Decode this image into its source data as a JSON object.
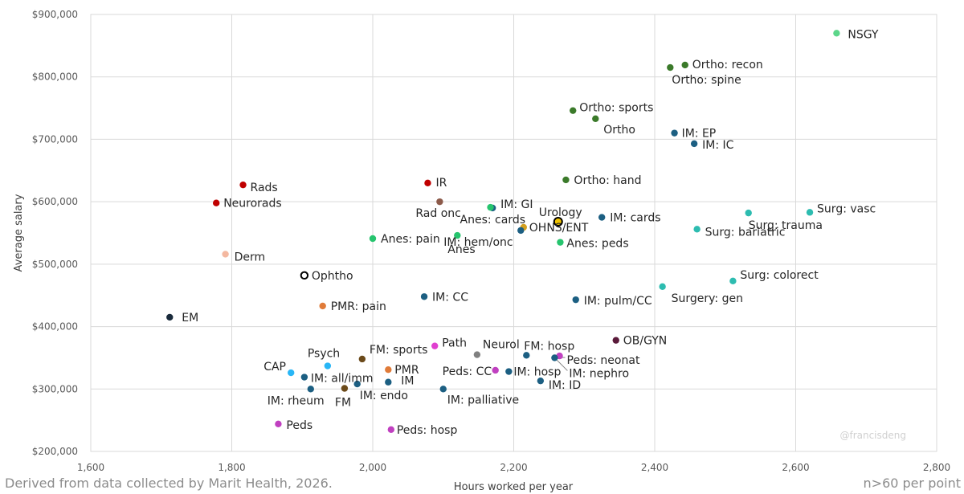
{
  "chart_data": {
    "type": "scatter",
    "title": "",
    "xlabel": "Hours worked per year",
    "ylabel": "Average salary",
    "xlim": [
      1600,
      2800
    ],
    "ylim": [
      200000,
      900000
    ],
    "x_ticks": [
      1600,
      1800,
      2000,
      2200,
      2400,
      2600,
      2800
    ],
    "y_ticks": [
      200000,
      300000,
      400000,
      500000,
      600000,
      700000,
      800000,
      900000
    ],
    "x_tick_labels": [
      "1,600",
      "1,800",
      "2,000",
      "2,200",
      "2,400",
      "2,600",
      "2,800"
    ],
    "y_tick_labels": [
      "$200,000",
      "$300,000",
      "$400,000",
      "$500,000",
      "$600,000",
      "$700,000",
      "$800,000",
      "$900,000"
    ],
    "grid": true,
    "points": [
      {
        "label": "NSGY",
        "x": 2658,
        "y": 870000,
        "color": "#5cd68a"
      },
      {
        "label": "Ortho: recon",
        "x": 2443,
        "y": 819000,
        "color": "#3b7a2a"
      },
      {
        "label": "Ortho: spine",
        "x": 2422,
        "y": 815000,
        "color": "#3b7a2a"
      },
      {
        "label": "Ortho: sports",
        "x": 2284,
        "y": 746000,
        "color": "#3b7a2a"
      },
      {
        "label": "Ortho",
        "x": 2316,
        "y": 733000,
        "color": "#3b7a2a"
      },
      {
        "label": "IM: EP",
        "x": 2428,
        "y": 710000,
        "color": "#1c5f82"
      },
      {
        "label": "IM: IC",
        "x": 2456,
        "y": 693000,
        "color": "#1c5f82"
      },
      {
        "label": "Ortho: hand",
        "x": 2274,
        "y": 635000,
        "color": "#3b7a2a"
      },
      {
        "label": "Rads",
        "x": 1816,
        "y": 627000,
        "color": "#c00000"
      },
      {
        "label": "IR",
        "x": 2078,
        "y": 630000,
        "color": "#c00000"
      },
      {
        "label": "Neurorads",
        "x": 1778,
        "y": 598000,
        "color": "#c00000"
      },
      {
        "label": "Rad onc",
        "x": 2095,
        "y": 600000,
        "color": "#8c5a4a"
      },
      {
        "label": "IM: GI",
        "x": 2170,
        "y": 590000,
        "color": "#1c5f82"
      },
      {
        "label": "Anes: cards",
        "x": 2167,
        "y": 591000,
        "color": "#26c46e"
      },
      {
        "label": "Urology",
        "x": 2263,
        "y": 568000,
        "color": "#f2c500"
      },
      {
        "label": "IM: cards",
        "x": 2325,
        "y": 575000,
        "color": "#1c5f82"
      },
      {
        "label": "Surg: vasc",
        "x": 2620,
        "y": 583000,
        "color": "#2dbcb0"
      },
      {
        "label": "Surg: trauma",
        "x": 2533,
        "y": 582000,
        "color": "#2dbcb0"
      },
      {
        "label": "OHNS/ENT",
        "x": 2214,
        "y": 559000,
        "color": "#d4a020"
      },
      {
        "label": "IM: hem/onc",
        "x": 2210,
        "y": 554000,
        "color": "#1c5f82"
      },
      {
        "label": "Surg: bariatric",
        "x": 2460,
        "y": 556000,
        "color": "#2dbcb0"
      },
      {
        "label": "Anes: pain",
        "x": 2000,
        "y": 541000,
        "color": "#26c46e"
      },
      {
        "label": "Anes",
        "x": 2120,
        "y": 546000,
        "color": "#26c46e"
      },
      {
        "label": "Anes: peds",
        "x": 2266,
        "y": 535000,
        "color": "#26c46e"
      },
      {
        "label": "Derm",
        "x": 1791,
        "y": 516000,
        "color": "#f4b8a0"
      },
      {
        "label": "Ophtho",
        "x": 1903,
        "y": 482000,
        "color": "#ffffff"
      },
      {
        "label": "Surg: colorect",
        "x": 2511,
        "y": 473000,
        "color": "#2dbcb0"
      },
      {
        "label": "Surgery: gen",
        "x": 2411,
        "y": 464000,
        "color": "#2dbcb0"
      },
      {
        "label": "IM: CC",
        "x": 2073,
        "y": 448000,
        "color": "#1c5f82"
      },
      {
        "label": "IM: pulm/CC",
        "x": 2288,
        "y": 443000,
        "color": "#1c5f82"
      },
      {
        "label": "PMR: pain",
        "x": 1929,
        "y": 433000,
        "color": "#e07b39"
      },
      {
        "label": "EM",
        "x": 1712,
        "y": 415000,
        "color": "#1a2b3c"
      },
      {
        "label": "OB/GYN",
        "x": 2345,
        "y": 378000,
        "color": "#5a1a3a"
      },
      {
        "label": "Path",
        "x": 2088,
        "y": 369000,
        "color": "#e040d0"
      },
      {
        "label": "Neurol",
        "x": 2148,
        "y": 355000,
        "color": "#808080"
      },
      {
        "label": "FM: hosp",
        "x": 2218,
        "y": 354000,
        "color": "#1c5f82"
      },
      {
        "label": "Peds: neonat",
        "x": 2265,
        "y": 353000,
        "color": "#c040c0"
      },
      {
        "label": "IM: nephro",
        "x": 2258,
        "y": 350000,
        "color": "#1c5f82"
      },
      {
        "label": "FM: sports",
        "x": 1985,
        "y": 348000,
        "color": "#6b4a1a"
      },
      {
        "label": "Psych",
        "x": 1936,
        "y": 337000,
        "color": "#29b6f6"
      },
      {
        "label": "PMR",
        "x": 2022,
        "y": 331000,
        "color": "#e07b39"
      },
      {
        "label": "Peds: CC",
        "x": 2174,
        "y": 330000,
        "color": "#c040c0"
      },
      {
        "label": "IM: hosp",
        "x": 2193,
        "y": 328000,
        "color": "#1c5f82"
      },
      {
        "label": "CAP",
        "x": 1884,
        "y": 326000,
        "color": "#29b6f6"
      },
      {
        "label": "IM: all/imm",
        "x": 1903,
        "y": 319000,
        "color": "#1c5f82"
      },
      {
        "label": "IM",
        "x": 2022,
        "y": 311000,
        "color": "#1c5f82"
      },
      {
        "label": "IM: ID",
        "x": 2238,
        "y": 313000,
        "color": "#1c5f82"
      },
      {
        "label": "IM: endo",
        "x": 1978,
        "y": 308000,
        "color": "#1c5f82"
      },
      {
        "label": "FM",
        "x": 1960,
        "y": 301000,
        "color": "#6b4a1a"
      },
      {
        "label": "IM: rheum",
        "x": 1912,
        "y": 300000,
        "color": "#1c5f82"
      },
      {
        "label": "IM: palliative",
        "x": 2100,
        "y": 300000,
        "color": "#1c5f82"
      },
      {
        "label": "Peds",
        "x": 1866,
        "y": 244000,
        "color": "#c040c0"
      },
      {
        "label": "Peds: hosp",
        "x": 2026,
        "y": 235000,
        "color": "#c040c0"
      }
    ]
  },
  "footer": {
    "source": "Derived from data collected by Marit Health, 2026.",
    "note": "n>60 per point",
    "watermark": "@francisdeng"
  }
}
